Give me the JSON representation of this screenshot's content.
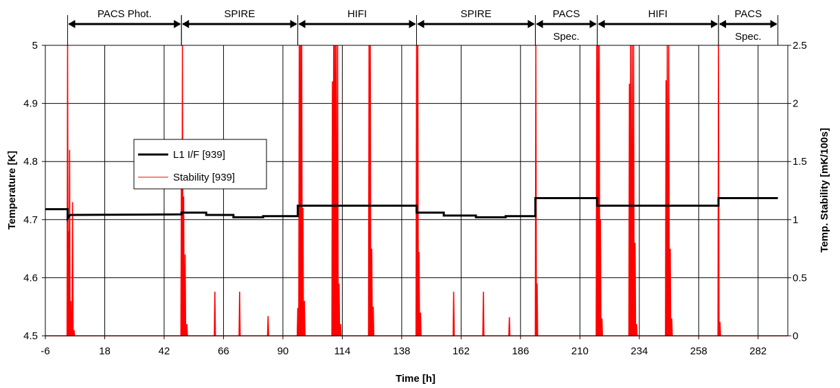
{
  "chart_data": {
    "type": "line",
    "xlabel": "Time [h]",
    "ylabel": "Temperature [K]",
    "y2label": "Temp. Stability [mK/100s]",
    "xlim": [
      -6,
      294
    ],
    "ylim": [
      4.5,
      5.0
    ],
    "y2lim": [
      0,
      2.5
    ],
    "x_ticks": [
      "-6",
      "18",
      "42",
      "66",
      "90",
      "114",
      "138",
      "162",
      "186",
      "210",
      "234",
      "258",
      "282"
    ],
    "y_ticks": [
      "4.5",
      "4.6",
      "4.7",
      "4.8",
      "4.9",
      "5"
    ],
    "y2_ticks": [
      "0",
      "0.5",
      "1",
      "1.5",
      "2",
      "2.5"
    ],
    "grid": true,
    "legend_position": "left",
    "phases": [
      {
        "label": "PACS Phot.",
        "start": 3,
        "end": 49
      },
      {
        "label": "SPIRE",
        "start": 49,
        "end": 96
      },
      {
        "label": "HIFI",
        "start": 96,
        "end": 144
      },
      {
        "label": "SPIRE",
        "start": 144,
        "end": 192
      },
      {
        "label": "PACS Spec.",
        "start": 192,
        "end": 217
      },
      {
        "label": "HIFI",
        "start": 217,
        "end": 266
      },
      {
        "label": "PACS Spec.",
        "start": 266,
        "end": 290
      }
    ],
    "series": [
      {
        "name": "L1 I/F [939]",
        "color": "#000000",
        "axis": "left",
        "points": [
          [
            -6,
            4.718
          ],
          [
            3,
            4.718
          ],
          [
            3,
            4.702
          ],
          [
            4,
            4.708
          ],
          [
            49,
            4.709
          ],
          [
            49,
            4.712
          ],
          [
            59,
            4.712
          ],
          [
            59,
            4.708
          ],
          [
            70,
            4.708
          ],
          [
            70,
            4.704
          ],
          [
            82,
            4.704
          ],
          [
            82,
            4.706
          ],
          [
            96,
            4.706
          ],
          [
            96,
            4.724
          ],
          [
            144,
            4.724
          ],
          [
            144,
            4.712
          ],
          [
            155,
            4.712
          ],
          [
            155,
            4.707
          ],
          [
            168,
            4.707
          ],
          [
            168,
            4.704
          ],
          [
            180,
            4.704
          ],
          [
            180,
            4.706
          ],
          [
            192,
            4.706
          ],
          [
            192,
            4.737
          ],
          [
            217,
            4.737
          ],
          [
            217,
            4.724
          ],
          [
            266,
            4.724
          ],
          [
            266,
            4.737
          ],
          [
            290,
            4.737
          ]
        ]
      },
      {
        "name": "Stability [939]",
        "color": "#ff0000",
        "axis": "right",
        "spikes": [
          [
            3.0,
            2.5
          ],
          [
            3.4,
            0.9
          ],
          [
            3.8,
            1.6
          ],
          [
            4.3,
            0.3
          ],
          [
            5.0,
            1.15
          ],
          [
            5.6,
            0.05
          ],
          [
            49.0,
            1.5
          ],
          [
            49.4,
            2.5
          ],
          [
            49.9,
            1.2
          ],
          [
            50.5,
            0.7
          ],
          [
            51.2,
            0.1
          ],
          [
            62.5,
            0.38
          ],
          [
            72.5,
            0.38
          ],
          [
            84.0,
            0.17
          ],
          [
            96.0,
            0.24
          ],
          [
            96.6,
            2.5
          ],
          [
            97.1,
            2.5
          ],
          [
            97.6,
            2.5
          ],
          [
            98.1,
            1.1
          ],
          [
            98.7,
            0.3
          ],
          [
            110.0,
            2.19
          ],
          [
            110.5,
            2.5
          ],
          [
            111.0,
            2.5
          ],
          [
            111.5,
            2.5
          ],
          [
            112.1,
            2.5
          ],
          [
            112.7,
            0.45
          ],
          [
            113.3,
            0.1
          ],
          [
            124.8,
            2.5
          ],
          [
            125.3,
            2.5
          ],
          [
            125.9,
            0.75
          ],
          [
            126.5,
            0.25
          ],
          [
            144.0,
            2.5
          ],
          [
            144.5,
            2.5
          ],
          [
            145.0,
            0.72
          ],
          [
            145.6,
            0.2
          ],
          [
            159.0,
            0.38
          ],
          [
            171.0,
            0.38
          ],
          [
            181.5,
            0.16
          ],
          [
            192.2,
            2.5
          ],
          [
            192.7,
            0.45
          ],
          [
            216.8,
            2.5
          ],
          [
            217.3,
            2.5
          ],
          [
            217.8,
            2.5
          ],
          [
            218.3,
            1.0
          ],
          [
            218.9,
            0.15
          ],
          [
            230.0,
            2.17
          ],
          [
            230.5,
            2.5
          ],
          [
            231.1,
            2.5
          ],
          [
            231.7,
            2.5
          ],
          [
            232.3,
            0.8
          ],
          [
            232.9,
            0.1
          ],
          [
            244.8,
            2.2
          ],
          [
            245.3,
            2.5
          ],
          [
            245.9,
            2.5
          ],
          [
            246.5,
            0.75
          ],
          [
            247.1,
            0.15
          ],
          [
            266.0,
            2.5
          ],
          [
            266.6,
            0.12
          ]
        ]
      }
    ]
  }
}
